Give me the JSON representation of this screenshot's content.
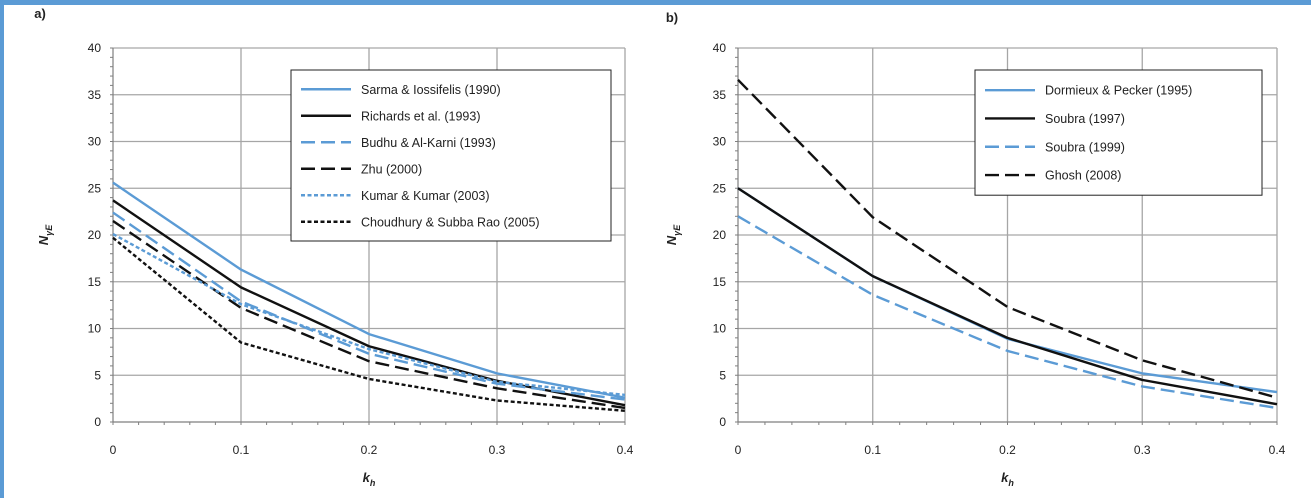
{
  "colors": {
    "frame": "#5b9bd5",
    "blue": "#5b9bd5",
    "black": "#111111",
    "grid": "#a6a6a6"
  },
  "chart_data": [
    {
      "type": "line",
      "panel_label": "a)",
      "xlabel_main": "k",
      "xlabel_sub": "h",
      "ylabel_main": "N",
      "ylabel_sub": "γE",
      "xlim": [
        0,
        0.4
      ],
      "ylim": [
        0,
        40
      ],
      "x_ticks": [
        "0",
        "0.1",
        "0.2",
        "0.3",
        "0.4"
      ],
      "y_ticks": [
        "0",
        "5",
        "10",
        "15",
        "20",
        "25",
        "30",
        "35",
        "40"
      ],
      "grid": true,
      "legend_position": "top-right",
      "x": [
        0,
        0.1,
        0.2,
        0.3,
        0.4
      ],
      "series": [
        {
          "name": "Sarma & Iossifelis (1990)",
          "values": [
            25.6,
            16.3,
            9.4,
            5.2,
            2.6
          ],
          "color": "#5b9bd5",
          "style": "solid"
        },
        {
          "name": "Richards et al. (1993)",
          "values": [
            23.7,
            14.4,
            8.1,
            4.4,
            1.8
          ],
          "color": "#111111",
          "style": "solid"
        },
        {
          "name": "Budhu & Al-Karni (1993)",
          "values": [
            22.4,
            12.9,
            7.3,
            4.1,
            2.4
          ],
          "color": "#5b9bd5",
          "style": "dashed"
        },
        {
          "name": "Zhu (2000)",
          "values": [
            21.5,
            12.2,
            6.5,
            3.6,
            1.5
          ],
          "color": "#111111",
          "style": "dashed"
        },
        {
          "name": "Kumar & Kumar (2003)",
          "values": [
            20.1,
            12.6,
            7.8,
            4.3,
            2.9
          ],
          "color": "#5b9bd5",
          "style": "dotted"
        },
        {
          "name": "Choudhury & Subba Rao (2005)",
          "values": [
            19.7,
            8.5,
            4.6,
            2.3,
            1.2
          ],
          "color": "#111111",
          "style": "dotted"
        }
      ]
    },
    {
      "type": "line",
      "panel_label": "b)",
      "xlabel_main": "k",
      "xlabel_sub": "h",
      "ylabel_main": "N",
      "ylabel_sub": "γE",
      "xlim": [
        0,
        0.4
      ],
      "ylim": [
        0,
        40
      ],
      "x_ticks": [
        "0",
        "0.1",
        "0.2",
        "0.3",
        "0.4"
      ],
      "y_ticks": [
        "0",
        "5",
        "10",
        "15",
        "20",
        "25",
        "30",
        "35",
        "40"
      ],
      "grid": true,
      "legend_position": "top-right",
      "x": [
        0,
        0.1,
        0.2,
        0.3,
        0.4
      ],
      "series": [
        {
          "name": "Dormieux & Pecker (1995)",
          "values": [
            25.0,
            15.6,
            8.9,
            5.2,
            3.2
          ],
          "color": "#5b9bd5",
          "style": "solid"
        },
        {
          "name": "Soubra (1997)",
          "values": [
            25.0,
            15.6,
            9.0,
            4.5,
            1.9
          ],
          "color": "#111111",
          "style": "solid"
        },
        {
          "name": "Soubra (1999)",
          "values": [
            22.0,
            13.6,
            7.6,
            3.8,
            1.5
          ],
          "color": "#5b9bd5",
          "style": "dashed"
        },
        {
          "name": "Ghosh (2008)",
          "values": [
            36.6,
            21.9,
            12.3,
            6.6,
            2.6
          ],
          "color": "#111111",
          "style": "dashed"
        }
      ]
    }
  ]
}
